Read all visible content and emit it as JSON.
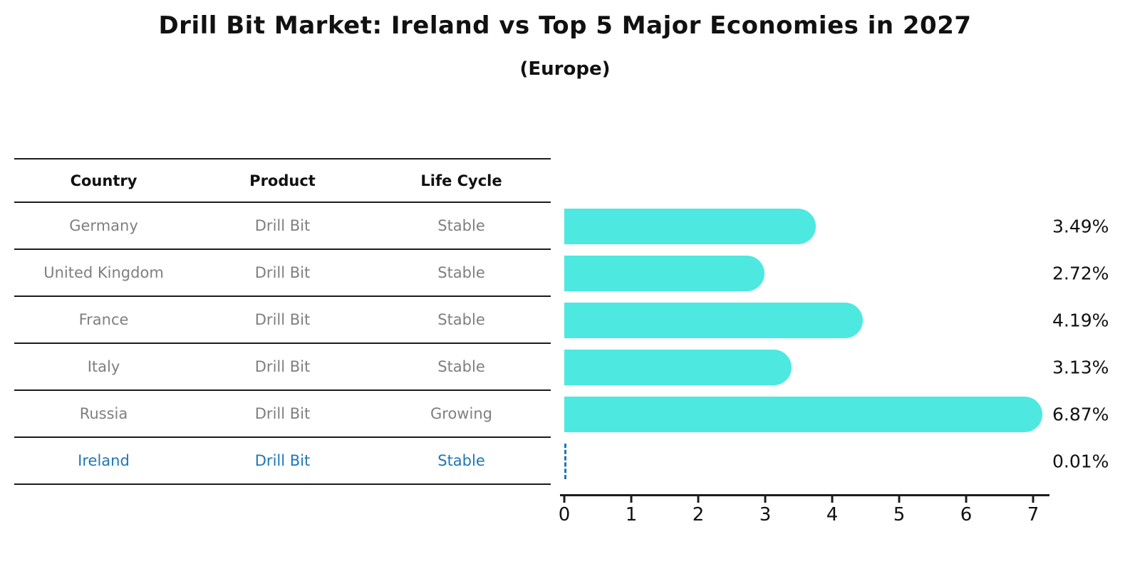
{
  "title": "Drill Bit Market: Ireland vs Top 5 Major Economies in 2027",
  "subtitle": "(Europe)",
  "table": {
    "headers": [
      "Country",
      "Product",
      "Life Cycle"
    ],
    "rows": [
      {
        "country": "Germany",
        "product": "Drill Bit",
        "life_cycle": "Stable",
        "highlight": false
      },
      {
        "country": "United Kingdom",
        "product": "Drill Bit",
        "life_cycle": "Stable",
        "highlight": false
      },
      {
        "country": "France",
        "product": "Drill Bit",
        "life_cycle": "Stable",
        "highlight": false
      },
      {
        "country": "Italy",
        "product": "Drill Bit",
        "life_cycle": "Stable",
        "highlight": false
      },
      {
        "country": "Russia",
        "product": "Drill Bit",
        "life_cycle": "Growing",
        "highlight": false
      },
      {
        "country": "Ireland",
        "product": "Drill Bit",
        "life_cycle": "Stable",
        "highlight": true
      }
    ]
  },
  "chart_data": {
    "type": "bar",
    "orientation": "horizontal",
    "title": "Drill Bit Market: Ireland vs Top 5 Major Economies in 2027 (Europe)",
    "categories": [
      "Germany",
      "United Kingdom",
      "France",
      "Italy",
      "Russia",
      "Ireland"
    ],
    "values": [
      3.49,
      2.72,
      4.19,
      3.13,
      6.87,
      0.01
    ],
    "value_labels": [
      "3.49%",
      "2.72%",
      "4.19%",
      "3.13%",
      "6.87%",
      "0.01%"
    ],
    "xlim": [
      0,
      7.3
    ],
    "xticks": [
      0,
      1,
      2,
      3,
      4,
      5,
      6,
      7
    ],
    "grid": false,
    "legend": "none",
    "highlight_index": 5
  },
  "colors": {
    "bar": "#4DE8E0",
    "highlight": "#1f77b4",
    "text_muted": "#7f7f7f",
    "text_main": "#111111",
    "axis": "#1c1c1c"
  }
}
